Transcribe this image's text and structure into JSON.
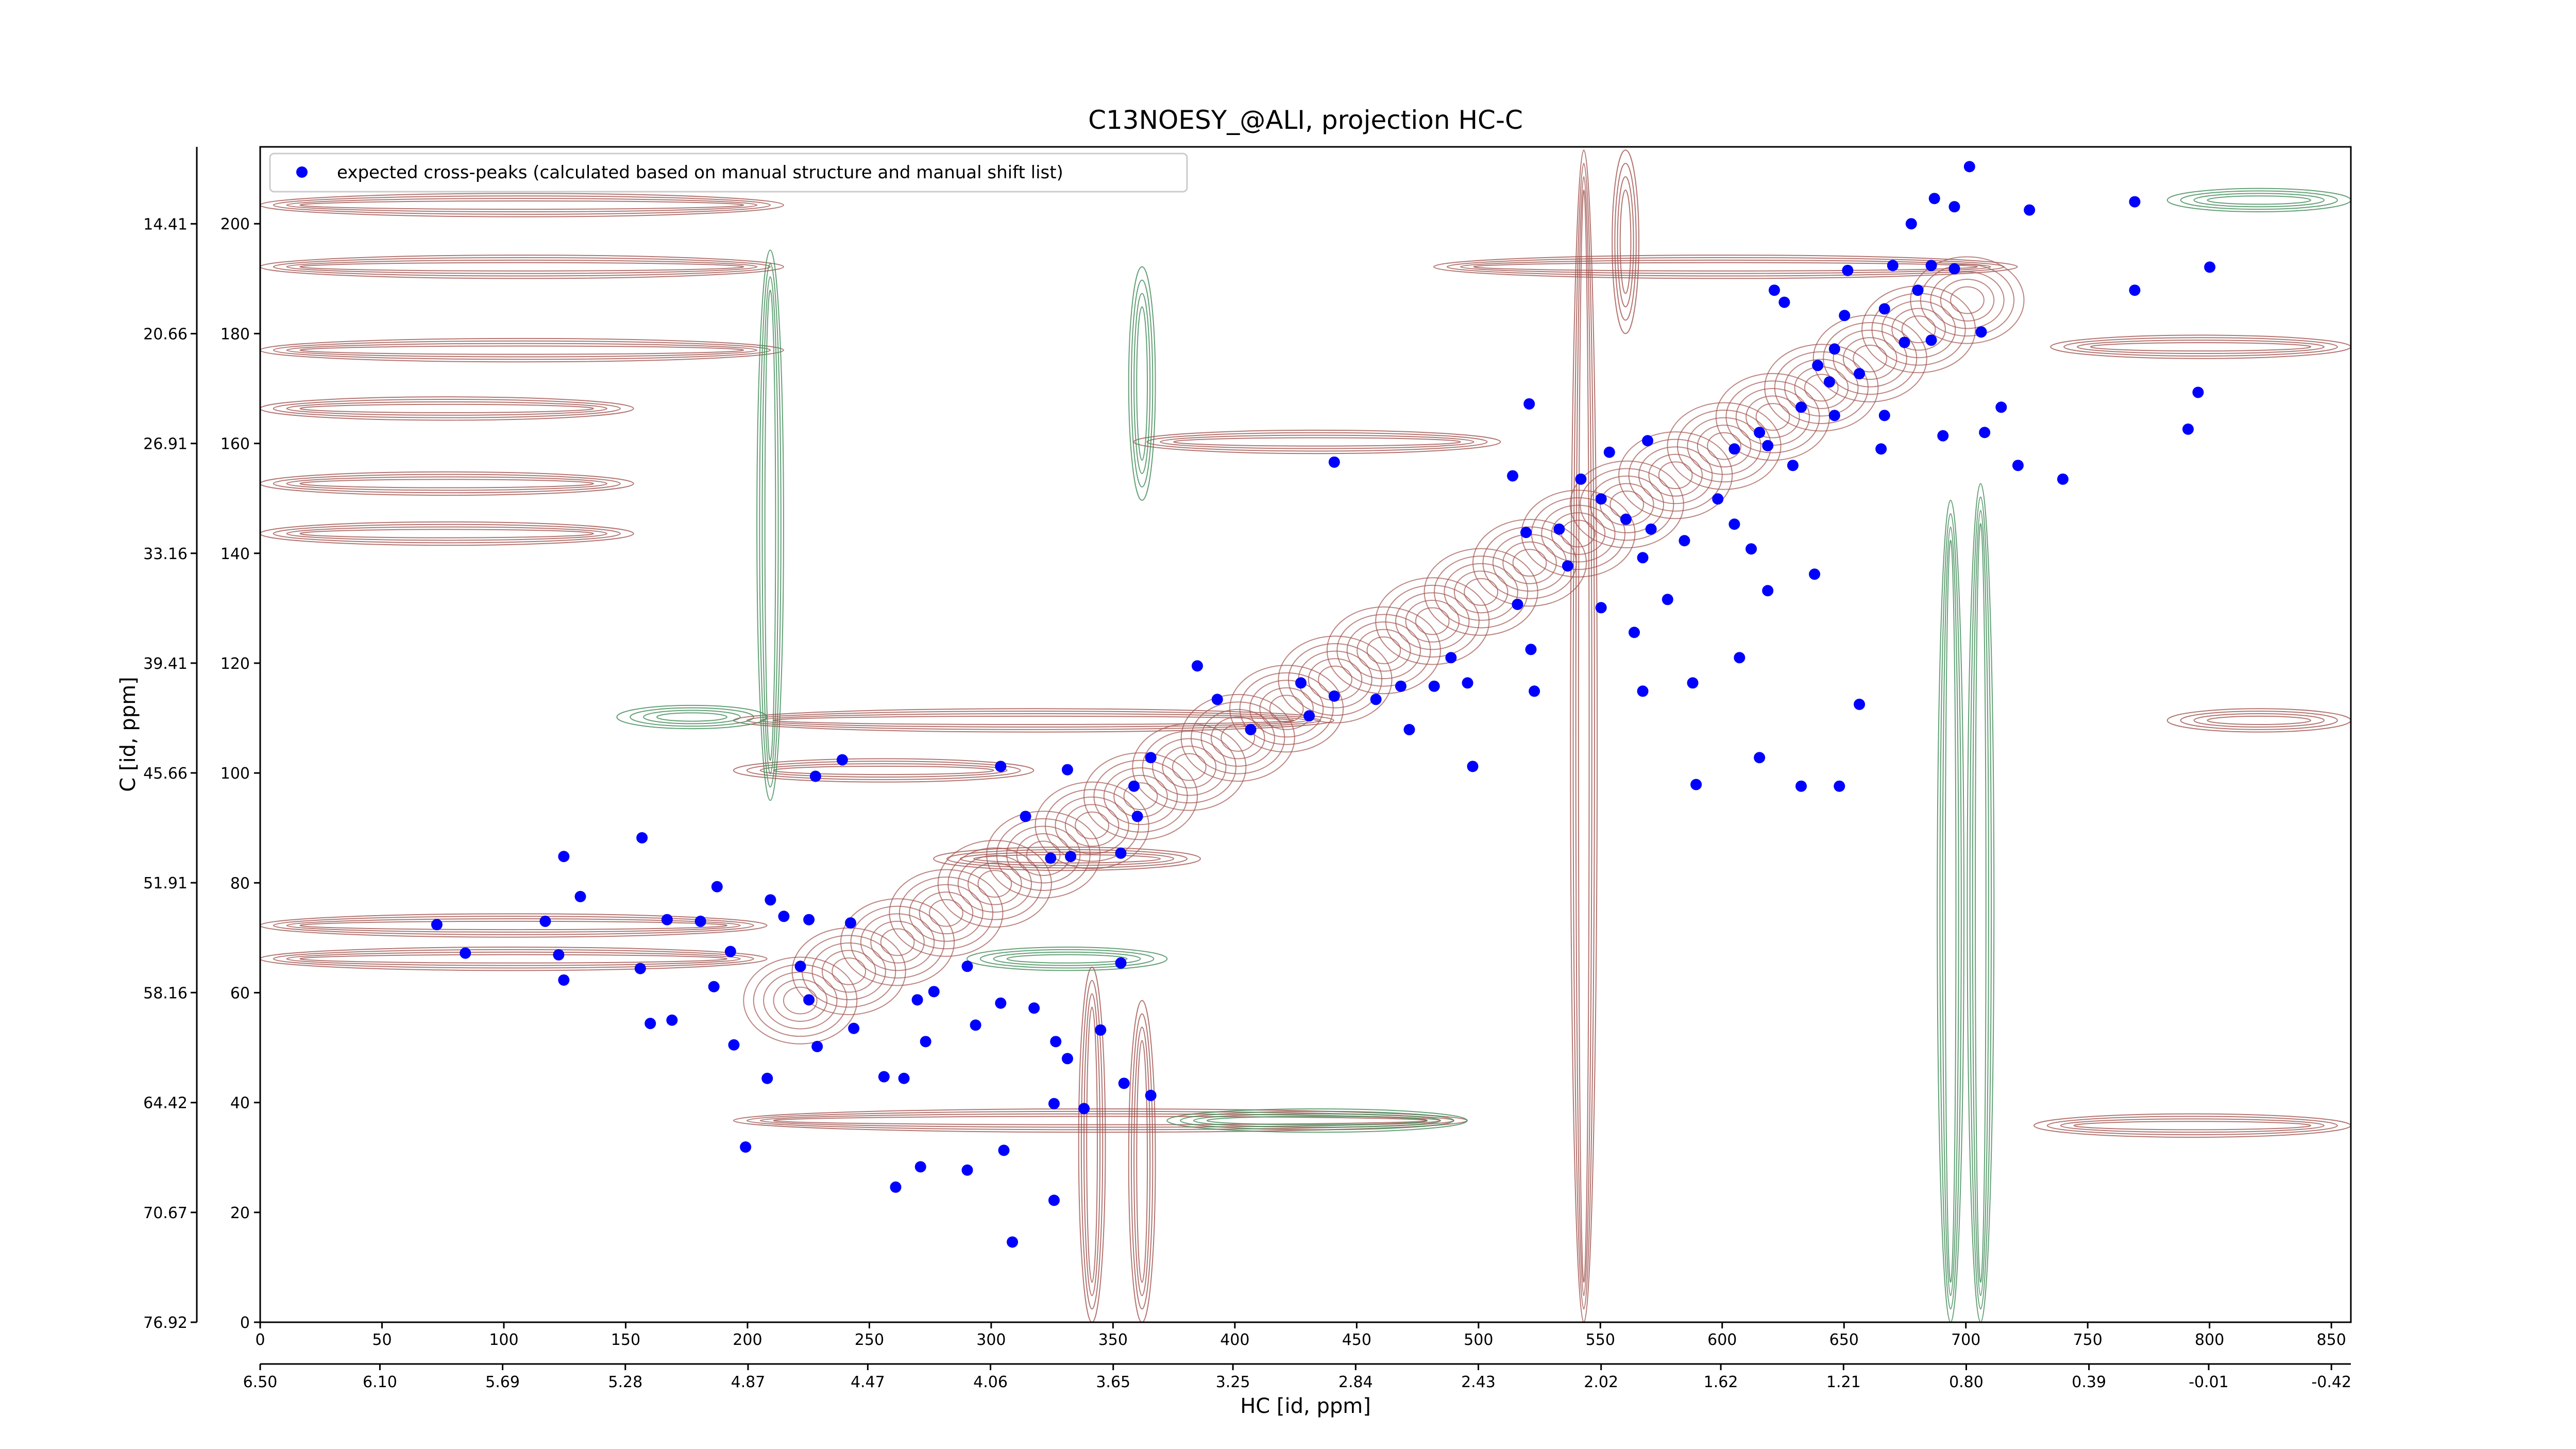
{
  "chart_data": {
    "type": "scatter",
    "title": "C13NOESY_@ALI, projection HC-C",
    "xlabel": "HC [id, ppm]",
    "ylabel": "C [id, ppm]",
    "legend": "upper left",
    "xlim": [
      0,
      858
    ],
    "xticks": [
      0,
      50,
      100,
      150,
      200,
      250,
      300,
      350,
      400,
      450,
      500,
      550,
      600,
      650,
      700,
      750,
      800,
      850
    ],
    "ylim": [
      0,
      214
    ],
    "yticks": [
      0,
      20,
      40,
      60,
      80,
      100,
      120,
      140,
      160,
      180,
      200
    ],
    "x2lim": [
      6.5,
      -0.485
    ],
    "x2ticks": [
      {
        "value": 6.5,
        "label": "6.50"
      },
      {
        "value": 6.1,
        "label": "6.10"
      },
      5.69,
      5.28,
      4.87,
      4.47,
      4.06,
      3.65,
      3.25,
      2.84,
      2.43,
      2.02,
      1.62,
      1.21,
      {
        "value": 0.8,
        "label": "0.80"
      },
      0.39,
      -0.01,
      -0.42
    ],
    "y2lim": [
      76.92,
      10.03
    ],
    "y2ticks": [
      76.92,
      70.67,
      64.42,
      58.16,
      51.91,
      45.66,
      39.41,
      33.16,
      26.91,
      20.66,
      14.41
    ],
    "x": [
      701.5,
      687.1,
      695.3,
      726.1,
      769.3,
      677.6,
      670.0,
      685.8,
      695.3,
      680.3,
      666.6,
      651.5,
      621.4,
      625.5,
      769.3,
      800.1,
      650.2,
      685.8,
      706.3,
      674.8,
      646.1,
      639.2,
      656.3,
      644.0,
      632.4,
      615.3,
      618.7,
      605.0,
      646.1,
      666.6,
      665.2,
      690.6,
      707.7,
      714.5,
      721.4,
      739.8,
      795.3,
      791.2,
      520.8,
      553.7,
      569.4,
      542.0,
      514.0,
      519.5,
      533.1,
      550.3,
      560.5,
      570.8,
      584.5,
      598.2,
      605.0,
      611.9,
      629.0,
      618.7,
      637.9,
      567.4,
      577.6,
      536.6,
      516.0,
      550.3,
      563.9,
      587.9,
      607.1,
      567.4,
      521.5,
      522.9,
      495.5,
      481.8,
      488.7,
      468.1,
      457.9,
      471.6,
      440.8,
      440.8,
      427.1,
      430.5,
      406.5,
      392.8,
      384.6,
      365.5,
      358.6,
      331.3,
      303.9,
      314.1,
      324.4,
      332.6,
      353.2,
      360.0,
      238.9,
      227.9,
      156.7,
      124.6,
      131.4,
      72.5,
      84.2,
      117.0,
      122.5,
      124.6,
      156.0,
      160.1,
      167.0,
      169.0,
      180.7,
      187.5,
      193.0,
      186.2,
      194.4,
      209.4,
      214.9,
      225.2,
      208.1,
      199.2,
      221.7,
      225.2,
      228.6,
      242.3,
      243.6,
      256.0,
      264.2,
      269.7,
      273.1,
      276.5,
      290.2,
      293.6,
      303.9,
      317.6,
      326.5,
      331.3,
      338.1,
      344.9,
      353.2,
      354.5,
      365.5,
      325.8,
      305.2,
      290.2,
      271.0,
      260.8,
      325.8,
      308.7,
      497.6,
      589.3,
      615.3,
      632.4,
      648.1,
      656.3
    ],
    "series": [
      {
        "name": "expected cross-peaks (calculated based on manual structure and manual shift list)",
        "color": "#0000ff",
        "values": [
          210.4,
          204.6,
          203.1,
          202.5,
          204.0,
          200.0,
          192.4,
          192.4,
          191.8,
          187.9,
          184.5,
          191.5,
          187.9,
          185.7,
          187.9,
          192.1,
          183.3,
          178.8,
          180.3,
          178.4,
          177.2,
          174.2,
          172.7,
          171.2,
          166.6,
          162.0,
          159.6,
          159.0,
          165.1,
          165.1,
          159.0,
          161.4,
          162.0,
          166.6,
          156.0,
          153.5,
          169.3,
          162.6,
          167.2,
          158.4,
          160.5,
          153.5,
          154.1,
          143.8,
          144.4,
          149.9,
          146.2,
          144.4,
          142.3,
          149.9,
          145.3,
          140.8,
          156.0,
          133.2,
          136.2,
          139.2,
          131.6,
          137.7,
          130.7,
          130.1,
          125.6,
          116.4,
          121.0,
          114.9,
          122.5,
          114.9,
          116.4,
          115.8,
          121.0,
          115.8,
          113.4,
          107.9,
          156.6,
          114.0,
          116.4,
          110.4,
          107.9,
          113.4,
          119.5,
          102.8,
          97.6,
          100.6,
          101.2,
          92.1,
          84.5,
          84.8,
          85.4,
          92.1,
          102.4,
          99.4,
          88.2,
          84.8,
          77.5,
          72.4,
          67.2,
          73.0,
          66.9,
          62.3,
          64.4,
          54.4,
          73.3,
          55.0,
          73.0,
          79.3,
          67.5,
          61.1,
          50.5,
          76.9,
          73.9,
          73.3,
          44.4,
          31.9,
          64.8,
          58.7,
          50.2,
          72.7,
          53.5,
          44.7,
          44.4,
          58.7,
          51.1,
          60.2,
          64.8,
          54.1,
          58.1,
          57.2,
          51.1,
          48.0,
          38.9,
          53.2,
          65.4,
          43.5,
          41.3,
          39.8,
          31.3,
          27.7,
          28.3,
          24.6,
          22.2,
          14.6,
          101.2,
          97.9,
          102.8,
          97.6,
          97.6,
          112.5
        ]
      }
    ]
  }
}
